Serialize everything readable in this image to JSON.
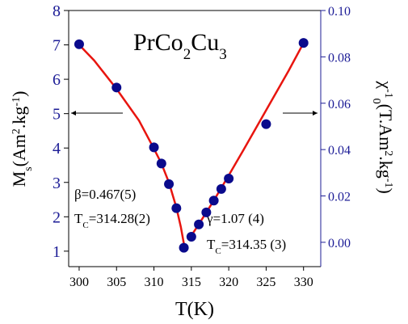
{
  "chart_data": {
    "type": "scatter",
    "title": [
      {
        "text": "PrCo"
      },
      {
        "text": "2",
        "shift": "sub"
      },
      {
        "text": "Cu"
      },
      {
        "text": "3",
        "shift": "sub"
      }
    ],
    "xlabel": [
      {
        "text": "T(K)"
      }
    ],
    "ylabel": [
      {
        "text": "M"
      },
      {
        "text": "s",
        "shift": "sub"
      },
      {
        "text": "(Am"
      },
      {
        "text": "2",
        "shift": "super"
      },
      {
        "text": ".kg"
      },
      {
        "text": "-1",
        "shift": "super"
      },
      {
        "text": ")"
      }
    ],
    "y2label": [
      {
        "text": "χ"
      },
      {
        "text": "-1",
        "shift": "super"
      },
      {
        "text": "0",
        "shift": "sub"
      },
      {
        "text": "(T.Am"
      },
      {
        "text": "2",
        "shift": "super"
      },
      {
        "text": ".kg"
      },
      {
        "text": "-1",
        "shift": "super"
      },
      {
        "text": ")"
      }
    ],
    "xlim": [
      298.6,
      332.3
    ],
    "xticks": [
      300,
      305,
      310,
      315,
      320,
      325,
      330
    ],
    "ylim": [
      0.55,
      8
    ],
    "yticks": [
      1,
      2,
      3,
      4,
      5,
      6,
      7,
      8
    ],
    "y2lim": [
      -0.0105,
      0.1
    ],
    "y2ticks": [
      {
        "value": 0,
        "label": "0.00"
      },
      {
        "value": 0.02,
        "label": "0.02"
      },
      {
        "value": 0.04,
        "label": "0.04"
      },
      {
        "value": 0.06,
        "label": "0.06"
      },
      {
        "value": 0.08,
        "label": "0.08"
      },
      {
        "value": 0.1,
        "label": "0.10"
      }
    ],
    "axis_color": "#1c1c96",
    "series": [
      {
        "mode": "markers",
        "color": "#0a0a8c",
        "x": [
          300,
          305,
          310,
          311,
          312,
          313,
          314
        ],
        "values": [
          7.02,
          5.76,
          4.02,
          3.55,
          2.95,
          2.25,
          1.1
        ]
      },
      {
        "mode": "markers",
        "color": "#0a0a8c",
        "axis": "y2",
        "x": [
          315,
          316,
          317,
          318,
          319,
          320,
          325,
          330
        ],
        "values": [
          0.0024,
          0.0077,
          0.0129,
          0.018,
          0.023,
          0.0275,
          0.051,
          0.086
        ]
      },
      {
        "mode": "line",
        "color": "#e8150f",
        "x": [
          300,
          302,
          305,
          308,
          310,
          311,
          312,
          313,
          313.6,
          314.1
        ],
        "values": [
          7.0,
          6.55,
          5.72,
          4.8,
          3.98,
          3.55,
          3.0,
          2.27,
          1.7,
          1.1
        ]
      },
      {
        "mode": "line",
        "color": "#e8150f",
        "axis": "y2",
        "x": [
          314.6,
          315,
          316,
          318,
          320,
          322,
          325,
          328,
          330
        ],
        "values": [
          0.001,
          0.0029,
          0.0078,
          0.018,
          0.0289,
          0.04,
          0.057,
          0.074,
          0.086
        ]
      }
    ],
    "annotations": [
      [
        {
          "text": "β=0.467(5)"
        }
      ],
      [
        {
          "text": "T"
        },
        {
          "text": "C",
          "shift": "sub"
        },
        {
          "text": "=314.28(2)"
        }
      ],
      [
        {
          "text": "γ=1.07 (4)"
        }
      ],
      [
        {
          "text": "T"
        },
        {
          "text": "C",
          "shift": "sub"
        },
        {
          "text": "=314.35 (3)"
        }
      ]
    ]
  }
}
